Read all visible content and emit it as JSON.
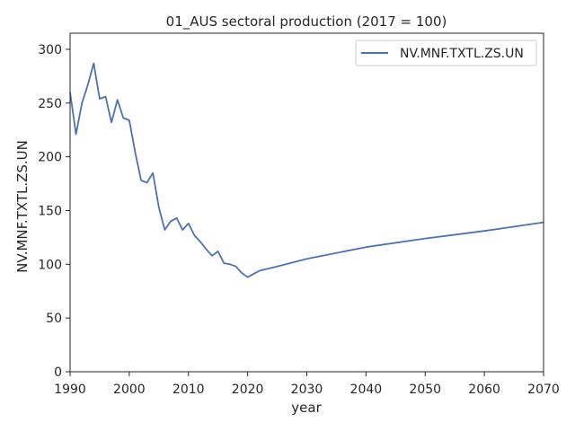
{
  "chart_data": {
    "type": "line",
    "title": "01_AUS sectoral production (2017 = 100)",
    "xlabel": "year",
    "ylabel": "NV.MNF.TXTL.ZS.UN",
    "xlim": [
      1990,
      2070
    ],
    "ylim": [
      0,
      315
    ],
    "xticks": [
      1990,
      2000,
      2010,
      2020,
      2030,
      2040,
      2050,
      2060,
      2070
    ],
    "yticks": [
      0,
      50,
      100,
      150,
      200,
      250,
      300
    ],
    "grid": false,
    "legend": "top-right",
    "series": [
      {
        "name": "NV.MNF.TXTL.ZS.UN",
        "color": "#4c72b0",
        "x": [
          1990,
          1991,
          1992,
          1993,
          1994,
          1995,
          1996,
          1997,
          1998,
          1999,
          2000,
          2001,
          2002,
          2003,
          2004,
          2005,
          2006,
          2007,
          2008,
          2009,
          2010,
          2011,
          2012,
          2013,
          2014,
          2015,
          2016,
          2017,
          2018,
          2019,
          2020,
          2021,
          2022,
          2025,
          2030,
          2040,
          2050,
          2060,
          2070
        ],
        "y": [
          260,
          221,
          250,
          267,
          287,
          254,
          256,
          232,
          253,
          236,
          234,
          204,
          178,
          176,
          185,
          153,
          132,
          140,
          143,
          132,
          138,
          127,
          121,
          114,
          108,
          112,
          101,
          100,
          98,
          92,
          88,
          91,
          94,
          98,
          105,
          116,
          124,
          131,
          139
        ]
      }
    ]
  }
}
